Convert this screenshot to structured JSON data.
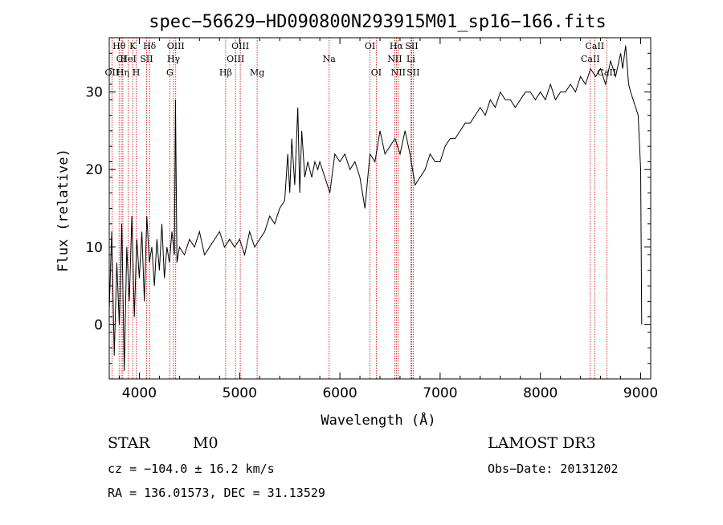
{
  "chart_data": {
    "type": "line",
    "title": "spec−56629−HD090800N293915M01_sp16−166.fits",
    "xlabel": "Wavelength (Å)",
    "ylabel": "Flux (relative)",
    "xlim": [
      3700,
      9100
    ],
    "ylim": [
      -7,
      37
    ],
    "x_ticks": [
      4000,
      5000,
      6000,
      7000,
      8000,
      9000
    ],
    "x_tick_labels": [
      "4000",
      "5000",
      "6000",
      "7000",
      "8000",
      "9000"
    ],
    "y_ticks": [
      0,
      10,
      20,
      30
    ],
    "y_tick_labels": [
      "0",
      "10",
      "20",
      "30"
    ],
    "series": [
      {
        "name": "flux",
        "x": [
          3700,
          3725,
          3750,
          3775,
          3800,
          3825,
          3850,
          3875,
          3900,
          3925,
          3950,
          3975,
          4000,
          4025,
          4050,
          4075,
          4100,
          4125,
          4150,
          4175,
          4200,
          4225,
          4250,
          4275,
          4300,
          4325,
          4350,
          4360,
          4375,
          4400,
          4450,
          4500,
          4550,
          4600,
          4650,
          4700,
          4750,
          4800,
          4850,
          4900,
          4950,
          5000,
          5050,
          5100,
          5150,
          5200,
          5250,
          5300,
          5350,
          5400,
          5450,
          5480,
          5500,
          5520,
          5550,
          5580,
          5600,
          5620,
          5650,
          5680,
          5700,
          5720,
          5750,
          5780,
          5800,
          5850,
          5900,
          5950,
          6000,
          6050,
          6100,
          6150,
          6200,
          6250,
          6300,
          6350,
          6400,
          6450,
          6500,
          6550,
          6600,
          6650,
          6700,
          6750,
          6800,
          6850,
          6900,
          6950,
          7000,
          7050,
          7100,
          7150,
          7200,
          7250,
          7300,
          7350,
          7400,
          7450,
          7500,
          7550,
          7600,
          7650,
          7700,
          7750,
          7800,
          7850,
          7900,
          7950,
          8000,
          8050,
          8100,
          8150,
          8200,
          8250,
          8300,
          8350,
          8400,
          8450,
          8500,
          8550,
          8600,
          8650,
          8700,
          8750,
          8800,
          8820,
          8850,
          8880,
          8900,
          8925,
          8950,
          8975,
          9000,
          9010
        ],
        "y": [
          2,
          12,
          -4,
          8,
          0,
          13,
          -6,
          10,
          3,
          14,
          1,
          11,
          6,
          12,
          3,
          14,
          8,
          10,
          5,
          11,
          7,
          13,
          6,
          10,
          8,
          12,
          9,
          29,
          8,
          10,
          9,
          11,
          10,
          12,
          9,
          10,
          11,
          12,
          10,
          11,
          10,
          11,
          9,
          12,
          10,
          11,
          12,
          14,
          13,
          15,
          16,
          22,
          17,
          24,
          18,
          28,
          17,
          25,
          19,
          21,
          20,
          19,
          21,
          20,
          21,
          19,
          17,
          22,
          21,
          22,
          20,
          21,
          19,
          15,
          22,
          21,
          25,
          22,
          23,
          24,
          22,
          25,
          22,
          18,
          19,
          20,
          22,
          21,
          21,
          23,
          24,
          24,
          25,
          26,
          26,
          27,
          28,
          27,
          29,
          28,
          30,
          29,
          29,
          28,
          29,
          30,
          30,
          29,
          30,
          29,
          31,
          29,
          30,
          30,
          31,
          30,
          32,
          31,
          33,
          32,
          33,
          31,
          34,
          32,
          35,
          33,
          36,
          31,
          30,
          29,
          28,
          27,
          20,
          0
        ]
      }
    ],
    "spectral_lines": [
      {
        "label": "Hθ",
        "x": 3798,
        "row": 1
      },
      {
        "label": "CI",
        "x": 3820,
        "row": 2
      },
      {
        "label": "OII",
        "x": 3727,
        "row": 3
      },
      {
        "label": "Hη",
        "x": 3835,
        "row": 3
      },
      {
        "label": "HeI",
        "x": 3889,
        "row": 2
      },
      {
        "label": "K",
        "x": 3934,
        "row": 1
      },
      {
        "label": "H",
        "x": 3969,
        "row": 3
      },
      {
        "label": "SII",
        "x": 4072,
        "row": 2
      },
      {
        "label": "Hδ",
        "x": 4102,
        "row": 1
      },
      {
        "label": "G",
        "x": 4304,
        "row": 3
      },
      {
        "label": "OIII",
        "x": 4363,
        "row": 1
      },
      {
        "label": "Hγ",
        "x": 4341,
        "row": 2
      },
      {
        "label": "Hβ",
        "x": 4861,
        "row": 3
      },
      {
        "label": "OIII",
        "x": 4959,
        "row": 2
      },
      {
        "label": "OIII",
        "x": 5007,
        "row": 1
      },
      {
        "label": "Mg",
        "x": 5175,
        "row": 3
      },
      {
        "label": "Na",
        "x": 5893,
        "row": 2
      },
      {
        "label": "OI",
        "x": 6300,
        "row": 1
      },
      {
        "label": "OI",
        "x": 6363,
        "row": 3
      },
      {
        "label": "Hα",
        "x": 6563,
        "row": 1
      },
      {
        "label": "NII",
        "x": 6548,
        "row": 2
      },
      {
        "label": "NII",
        "x": 6583,
        "row": 3
      },
      {
        "label": "SII",
        "x": 6716,
        "row": 1
      },
      {
        "label": "Li",
        "x": 6708,
        "row": 2
      },
      {
        "label": "SII",
        "x": 6731,
        "row": 3
      },
      {
        "label": "CaII",
        "x": 8498,
        "row": 2
      },
      {
        "label": "CaII",
        "x": 8542,
        "row": 1
      },
      {
        "label": "CaII",
        "x": 8662,
        "row": 3
      }
    ]
  },
  "info": {
    "class_label": "STAR",
    "subclass": "M0",
    "survey": "LAMOST DR3",
    "cz": "cz = −104.0 ± 16.2 km/s",
    "obs_date": "Obs−Date: 20131202",
    "coords": "RA = 136.01573, DEC =  31.13529"
  },
  "colors": {
    "line": "#000000",
    "marker": "#cc0000",
    "axis": "#000000"
  }
}
